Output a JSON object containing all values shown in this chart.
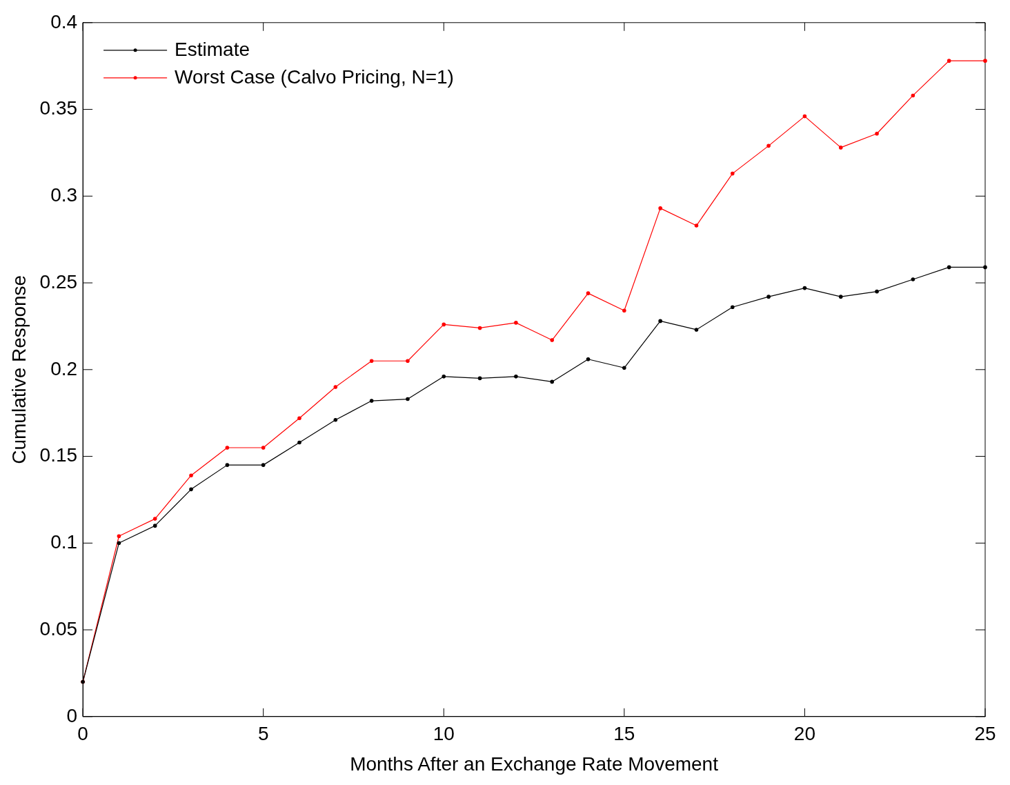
{
  "chart_data": {
    "type": "line",
    "xlabel": "Months After an Exchange Rate Movement",
    "ylabel": "Cumulative Response",
    "x": [
      0,
      1,
      2,
      3,
      4,
      5,
      6,
      7,
      8,
      9,
      10,
      11,
      12,
      13,
      14,
      15,
      16,
      17,
      18,
      19,
      20,
      21,
      22,
      23,
      24,
      25
    ],
    "series": [
      {
        "name": "Estimate",
        "color": "#000000",
        "values": [
          0.02,
          0.1,
          0.11,
          0.131,
          0.145,
          0.145,
          0.158,
          0.171,
          0.182,
          0.183,
          0.196,
          0.195,
          0.196,
          0.193,
          0.206,
          0.201,
          0.228,
          0.223,
          0.236,
          0.242,
          0.247,
          0.242,
          0.245,
          0.252,
          0.259,
          0.259
        ]
      },
      {
        "name": "Worst Case (Calvo Pricing, N=1)",
        "color": "#ff0000",
        "values": [
          0.02,
          0.104,
          0.114,
          0.139,
          0.155,
          0.155,
          0.172,
          0.19,
          0.205,
          0.205,
          0.226,
          0.224,
          0.227,
          0.217,
          0.244,
          0.234,
          0.293,
          0.283,
          0.313,
          0.329,
          0.346,
          0.328,
          0.336,
          0.358,
          0.378,
          0.378
        ]
      }
    ],
    "xlim": [
      0,
      25
    ],
    "xticks": [
      0,
      5,
      10,
      15,
      20,
      25
    ],
    "ylim": [
      0,
      0.4
    ],
    "yticks": [
      0,
      0.05,
      0.1,
      0.15,
      0.2,
      0.25,
      0.3,
      0.35,
      0.4
    ],
    "grid": false,
    "legend": "top left",
    "marker": "circle",
    "line_style": "solid"
  }
}
